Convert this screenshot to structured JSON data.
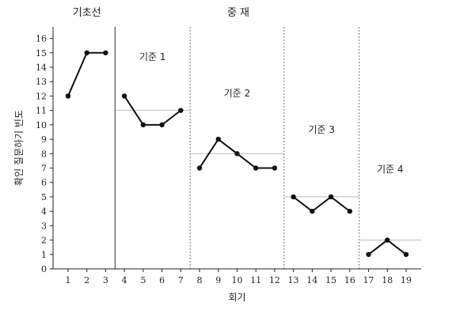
{
  "chart_data": {
    "type": "line",
    "title": "",
    "xlabel": "회기",
    "ylabel": "확인 질문하기 빈도",
    "x": [
      1,
      2,
      3,
      4,
      5,
      6,
      7,
      8,
      9,
      10,
      11,
      12,
      13,
      14,
      15,
      16,
      17,
      18,
      19
    ],
    "xlim": [
      0.2,
      19.8
    ],
    "ylim": [
      0,
      16.8
    ],
    "yticks": [
      0,
      1,
      2,
      3,
      4,
      5,
      6,
      7,
      8,
      9,
      10,
      11,
      12,
      13,
      14,
      15,
      16
    ],
    "grid": false,
    "phase_labels": {
      "baseline": "기초선",
      "intervention": "중 재"
    },
    "phase_dividers": [
      {
        "after_x": 3.5,
        "style": "solid"
      },
      {
        "after_x": 7.5,
        "style": "dotted"
      },
      {
        "after_x": 12.5,
        "style": "dotted"
      },
      {
        "after_x": 16.5,
        "style": "dotted"
      }
    ],
    "segments": [
      {
        "label": "",
        "x": [
          1,
          2,
          3
        ],
        "y": [
          12,
          15,
          15
        ]
      },
      {
        "label": "기준 1",
        "criterion": 11,
        "x": [
          4,
          5,
          6,
          7
        ],
        "y": [
          12,
          10,
          10,
          11
        ]
      },
      {
        "label": "기준 2",
        "criterion": 8,
        "x": [
          8,
          9,
          10,
          11,
          12
        ],
        "y": [
          7,
          9,
          8,
          7,
          7
        ]
      },
      {
        "label": "기준 3",
        "criterion": 5,
        "x": [
          13,
          14,
          15,
          16
        ],
        "y": [
          5,
          4,
          5,
          4
        ]
      },
      {
        "label": "기준 4",
        "criterion": 2,
        "x": [
          17,
          18,
          19
        ],
        "y": [
          1,
          2,
          1
        ]
      }
    ]
  }
}
